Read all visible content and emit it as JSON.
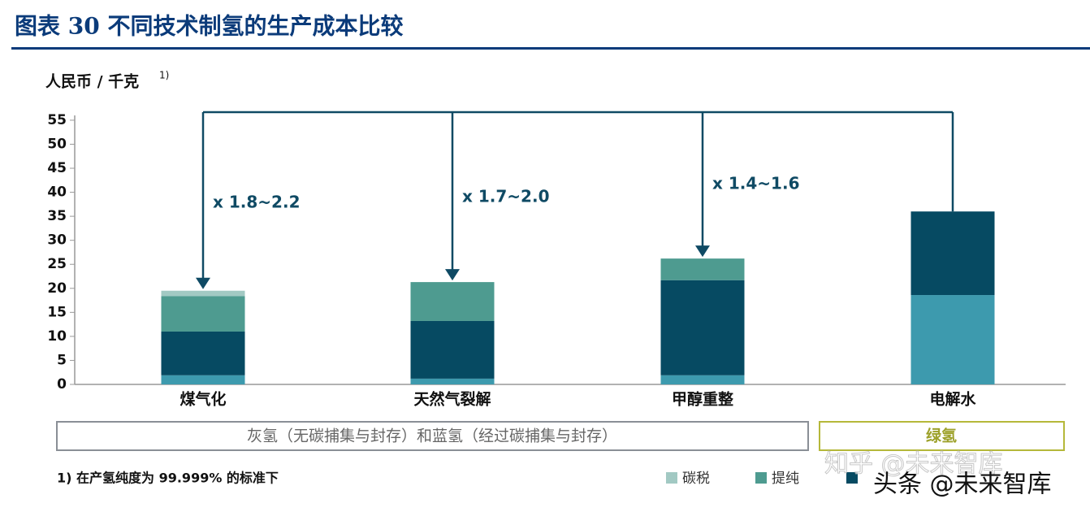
{
  "chart_data": {
    "type": "stacked_bar",
    "title": "图表 30   不同技术制氢的生产成本比较",
    "y_label": "人民币 / 千克",
    "y_label_note": "1)",
    "categories": [
      "煤气化",
      "天然气裂解",
      "甲醇重整",
      "电解水"
    ],
    "series": [
      {
        "name": null,
        "color": "#3d9aae",
        "values": [
          1.9,
          1.2,
          1.9,
          18.6
        ]
      },
      {
        "name": null,
        "color": "#064a62",
        "values": [
          9.1,
          12.0,
          19.8,
          17.4
        ]
      },
      {
        "name": "提纯",
        "color": "#4e9b90",
        "values": [
          7.4,
          8.1,
          4.5,
          0
        ]
      },
      {
        "name": "碳税",
        "color": "#a2c9c3",
        "values": [
          1.1,
          0,
          0,
          0
        ]
      }
    ],
    "ylim": [
      0,
      56
    ],
    "yticks": [
      0,
      5,
      10,
      15,
      20,
      25,
      30,
      35,
      40,
      45,
      50,
      55
    ],
    "annotations": [
      "x 1.8~2.2",
      "x 1.7~2.0",
      "x 1.4~1.6"
    ],
    "groups": [
      "灰氢（无碳捕集与封存）和蓝氢（经过碳捕集与封存）",
      "绿氢"
    ],
    "footnote": "1) 在产氢纯度为 99.999% 的标准下",
    "watermarks": [
      "知乎 @未来智库",
      "头条 @未来智库"
    ]
  }
}
